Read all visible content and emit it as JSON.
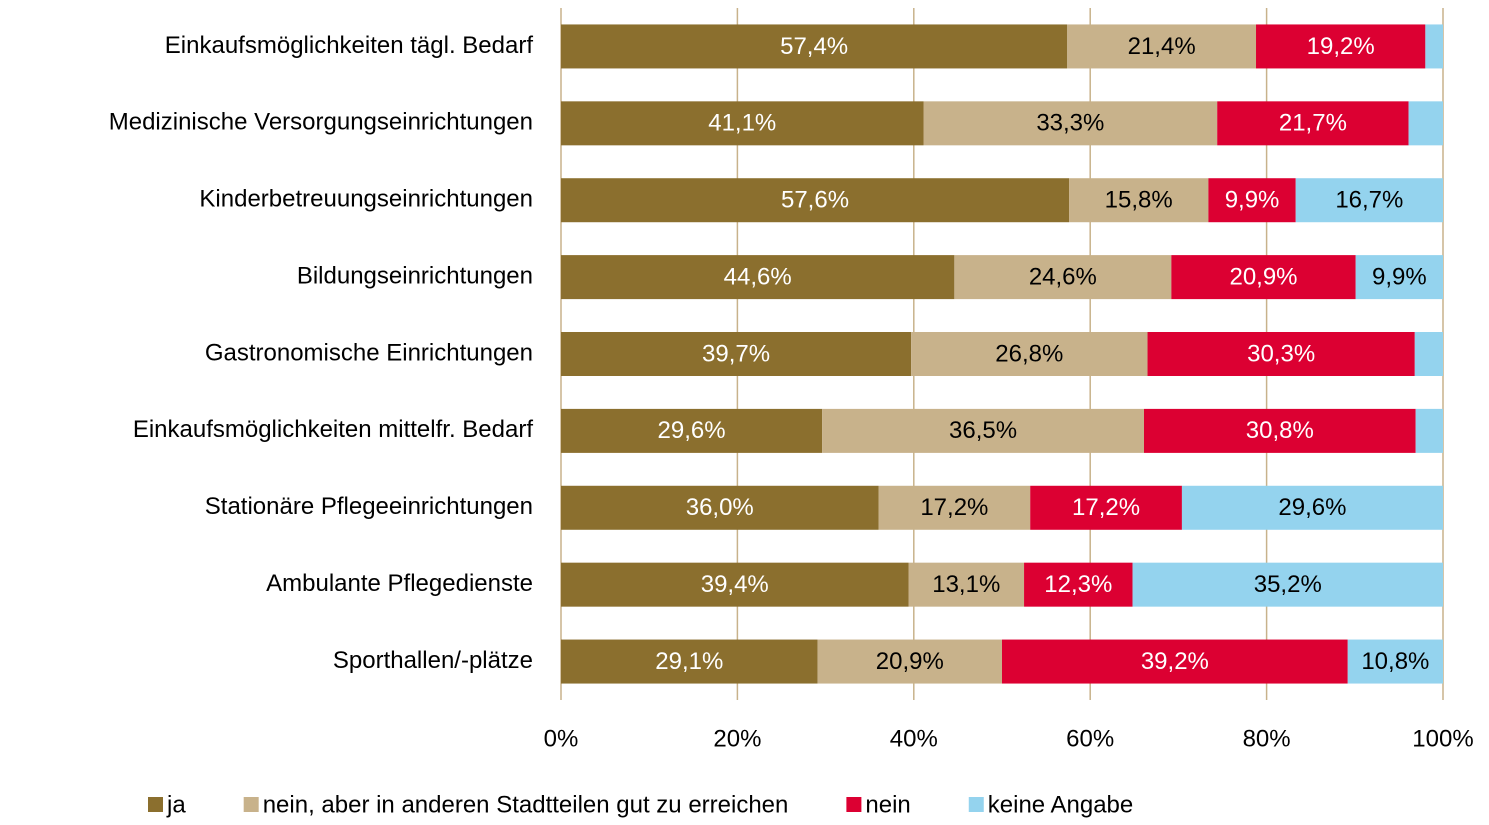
{
  "chart_data": {
    "type": "stacked-bar-horizontal",
    "categories": [
      "Einkaufsmöglichkeiten tägl. Bedarf",
      "Medizinische Versorgungseinrichtungen",
      "Kinderbetreuungseinrichtungen",
      "Bildungseinrichtungen",
      "Gastronomische Einrichtungen",
      "Einkaufsmöglichkeiten mittelfr. Bedarf",
      "Stationäre Pflegeeinrichtungen",
      "Ambulante Pflegedienste",
      "Sporthallen/-plätze"
    ],
    "series": [
      {
        "name": "ja",
        "color": "#8b6f2e",
        "values": [
          57.4,
          41.1,
          57.6,
          44.6,
          39.7,
          29.6,
          36.0,
          39.4,
          29.1
        ],
        "value_labels": [
          "57,4%",
          "41,1%",
          "57,6%",
          "44,6%",
          "39,7%",
          "29,6%",
          "36,0%",
          "39,4%",
          "29,1%"
        ]
      },
      {
        "name": "nein, aber in anderen Stadtteilen gut zu erreichen",
        "color": "#c8b28b",
        "values": [
          21.4,
          33.3,
          15.8,
          24.6,
          26.8,
          36.5,
          17.2,
          13.1,
          20.9
        ],
        "value_labels": [
          "21,4%",
          "33,3%",
          "15,8%",
          "24,6%",
          "26,8%",
          "36,5%",
          "17,2%",
          "13,1%",
          "20,9%"
        ]
      },
      {
        "name": "nein",
        "color": "#dc0032",
        "values": [
          19.2,
          21.7,
          9.9,
          20.9,
          30.3,
          30.8,
          17.2,
          12.3,
          39.2
        ],
        "value_labels": [
          "19,2%",
          "21,7%",
          "9,9%",
          "20,9%",
          "30,3%",
          "30,8%",
          "17,2%",
          "12,3%",
          "39,2%"
        ]
      },
      {
        "name": "keine Angabe",
        "color": "#94d3ee",
        "values": [
          2.0,
          3.9,
          16.7,
          9.9,
          3.2,
          3.1,
          29.6,
          35.2,
          10.8
        ],
        "value_labels": [
          null,
          null,
          "16,7%",
          "9,9%",
          null,
          null,
          "29,6%",
          "35,2%",
          "10,8%"
        ]
      }
    ],
    "xlim": [
      0,
      100
    ],
    "xticks": [
      {
        "value": 0,
        "label": "0%"
      },
      {
        "value": 20,
        "label": "20%"
      },
      {
        "value": 40,
        "label": "40%"
      },
      {
        "value": 60,
        "label": "60%"
      },
      {
        "value": 80,
        "label": "80%"
      },
      {
        "value": 100,
        "label": "100%"
      }
    ],
    "grid": true,
    "legend": "bottom"
  }
}
